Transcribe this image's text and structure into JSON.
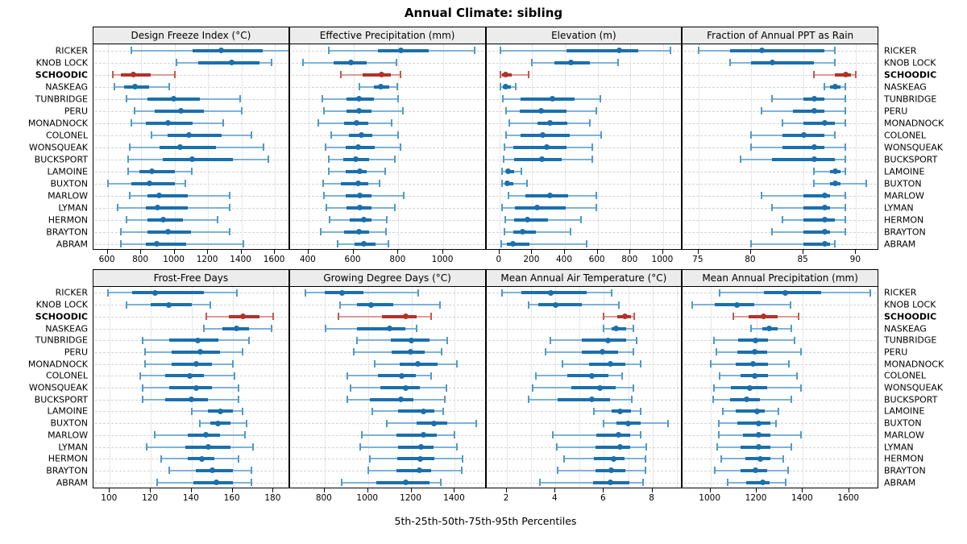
{
  "title": "Annual Climate: sibling",
  "footer": "5th-25th-50th-75th-95th Percentiles",
  "highlight_site": "SCHOODIC",
  "colors": {
    "normal_main": "#1b6fad",
    "normal_light": "#7fb2d8",
    "normal_cap": "#4f9ac9",
    "highlight_main": "#b23229",
    "highlight_light": "#db9d97",
    "highlight_cap": "#c4584e",
    "grid": "#d0d0d0",
    "strip_bg": "#ececec",
    "panel_border": "#000000"
  },
  "sites": [
    "RICKER",
    "KNOB LOCK",
    "SCHOODIC",
    "NASKEAG",
    "TUNBRIDGE",
    "PERU",
    "MONADNOCK",
    "COLONEL",
    "WONSQUEAK",
    "BUCKSPORT",
    "LAMOINE",
    "BUXTON",
    "MARLOW",
    "LYMAN",
    "HERMON",
    "BRAYTON",
    "ABRAM"
  ],
  "chart_data": {
    "type": "dotplot",
    "note": "5 values per site = 5th,25th,50th,75th,95th percentiles",
    "percentiles": [
      5,
      25,
      50,
      75,
      95
    ],
    "layout": {
      "rows": 2,
      "cols": 4,
      "legend": "none",
      "grid": "dotted"
    },
    "panels": [
      {
        "title": "Design Freeze Index (°C)",
        "xlim": [
          515,
          1690
        ],
        "ticks": [
          600,
          800,
          1000,
          1200,
          1400,
          1600
        ],
        "values": [
          [
            740,
            1110,
            1280,
            1530,
            1690
          ],
          [
            1010,
            1140,
            1340,
            1510,
            1580
          ],
          [
            630,
            680,
            755,
            860,
            1000
          ],
          [
            640,
            700,
            765,
            850,
            970
          ],
          [
            710,
            840,
            995,
            1150,
            1390
          ],
          [
            760,
            880,
            1040,
            1175,
            1400
          ],
          [
            740,
            830,
            960,
            1110,
            1290
          ],
          [
            860,
            960,
            1085,
            1280,
            1460
          ],
          [
            730,
            910,
            1035,
            1250,
            1530
          ],
          [
            720,
            930,
            1105,
            1350,
            1560
          ],
          [
            720,
            790,
            865,
            1000,
            1105
          ],
          [
            600,
            740,
            850,
            1000,
            1065
          ],
          [
            730,
            840,
            910,
            1080,
            1330
          ],
          [
            660,
            830,
            900,
            1080,
            1330
          ],
          [
            710,
            840,
            930,
            1050,
            1255
          ],
          [
            680,
            840,
            960,
            1100,
            1330
          ],
          [
            680,
            830,
            895,
            1070,
            1410
          ]
        ]
      },
      {
        "title": "Effective Precipitation (mm)",
        "xlim": [
          317,
          1192
        ],
        "ticks": [
          400,
          600,
          800,
          1000
        ],
        "values": [
          [
            490,
            710,
            810,
            935,
            1140
          ],
          [
            375,
            510,
            590,
            660,
            790
          ],
          [
            545,
            640,
            725,
            765,
            810
          ],
          [
            625,
            690,
            720,
            760,
            795
          ],
          [
            460,
            570,
            625,
            690,
            800
          ],
          [
            470,
            570,
            625,
            680,
            820
          ],
          [
            445,
            560,
            615,
            665,
            770
          ],
          [
            500,
            580,
            635,
            685,
            800
          ],
          [
            475,
            565,
            620,
            695,
            810
          ],
          [
            490,
            555,
            610,
            670,
            785
          ],
          [
            490,
            565,
            630,
            660,
            740
          ],
          [
            465,
            545,
            620,
            665,
            715
          ],
          [
            470,
            565,
            630,
            680,
            825
          ],
          [
            480,
            570,
            630,
            680,
            785
          ],
          [
            495,
            585,
            645,
            680,
            750
          ],
          [
            455,
            560,
            625,
            670,
            745
          ],
          [
            530,
            605,
            645,
            700,
            755
          ]
        ]
      },
      {
        "title": "Elevation (m)",
        "xlim": [
          -80,
          1120
        ],
        "ticks": [
          0,
          200,
          400,
          600,
          800,
          1000
        ],
        "values": [
          [
            5,
            410,
            730,
            850,
            1045
          ],
          [
            200,
            335,
            435,
            555,
            725
          ],
          [
            5,
            15,
            40,
            75,
            180
          ],
          [
            5,
            20,
            40,
            70,
            100
          ],
          [
            20,
            130,
            325,
            460,
            615
          ],
          [
            40,
            125,
            255,
            410,
            590
          ],
          [
            60,
            230,
            310,
            415,
            550
          ],
          [
            40,
            130,
            265,
            430,
            620
          ],
          [
            30,
            85,
            290,
            410,
            565
          ],
          [
            25,
            90,
            260,
            380,
            565
          ],
          [
            15,
            40,
            55,
            90,
            135
          ],
          [
            15,
            35,
            50,
            85,
            170
          ],
          [
            55,
            160,
            310,
            420,
            590
          ],
          [
            15,
            95,
            230,
            405,
            590
          ],
          [
            35,
            90,
            170,
            295,
            500
          ],
          [
            30,
            85,
            140,
            225,
            435
          ],
          [
            10,
            45,
            80,
            185,
            535
          ]
        ]
      },
      {
        "title": "Fraction of Annual PPT as Rain",
        "xlim": [
          73.5,
          92.2
        ],
        "ticks": [
          75,
          80,
          85,
          90
        ],
        "values": [
          [
            75,
            78,
            81,
            87,
            88
          ],
          [
            78,
            80,
            82,
            86,
            88
          ],
          [
            86,
            88,
            89,
            89.5,
            90
          ],
          [
            87,
            87.5,
            88,
            88.5,
            89
          ],
          [
            82,
            85,
            86,
            87,
            89
          ],
          [
            81,
            84,
            86,
            87,
            89
          ],
          [
            83,
            85,
            87,
            88,
            89
          ],
          [
            80,
            83,
            85,
            87,
            88
          ],
          [
            80,
            83,
            86,
            87,
            89
          ],
          [
            79,
            82,
            86,
            88,
            89
          ],
          [
            86,
            87.5,
            88,
            88.5,
            89
          ],
          [
            86,
            87.5,
            88,
            88.5,
            91
          ],
          [
            81,
            85,
            87,
            87.5,
            89
          ],
          [
            82,
            85,
            87,
            87.5,
            89
          ],
          [
            83,
            85,
            87,
            88,
            89
          ],
          [
            82,
            85,
            87,
            87.5,
            89
          ],
          [
            80,
            85,
            87,
            87.5,
            88
          ]
        ]
      },
      {
        "title": "Frost-Free Days",
        "xlim": [
          92,
          188
        ],
        "ticks": [
          100,
          120,
          140,
          160,
          180
        ],
        "values": [
          [
            99,
            111,
            122,
            146,
            162
          ],
          [
            108,
            120,
            129,
            140,
            149
          ],
          [
            147,
            158,
            165,
            173,
            180
          ],
          [
            146,
            155,
            162,
            168,
            179
          ],
          [
            116,
            129,
            143,
            153,
            168
          ],
          [
            117,
            130,
            144,
            154,
            165
          ],
          [
            117,
            130,
            142,
            150,
            160
          ],
          [
            115,
            127,
            139,
            146,
            161
          ],
          [
            116,
            129,
            142,
            150,
            163
          ],
          [
            116,
            127,
            140,
            148,
            163
          ],
          [
            140,
            148,
            154,
            160,
            165
          ],
          [
            144,
            149,
            153,
            159,
            167
          ],
          [
            122,
            138,
            147,
            154,
            166
          ],
          [
            118,
            137,
            148,
            159,
            170
          ],
          [
            125,
            138,
            145,
            151,
            163
          ],
          [
            129,
            142,
            150,
            160,
            169
          ],
          [
            123,
            141,
            152,
            160,
            169
          ]
        ]
      },
      {
        "title": "Growing Degree Days (°C)",
        "xlim": [
          640,
          1545
        ],
        "ticks": [
          800,
          1000,
          1200,
          1400
        ],
        "values": [
          [
            710,
            800,
            880,
            980,
            1230
          ],
          [
            870,
            950,
            1015,
            1115,
            1330
          ],
          [
            865,
            1065,
            1175,
            1225,
            1290
          ],
          [
            805,
            950,
            1100,
            1170,
            1225
          ],
          [
            950,
            1105,
            1200,
            1285,
            1365
          ],
          [
            935,
            1110,
            1195,
            1260,
            1340
          ],
          [
            1030,
            1145,
            1230,
            1320,
            1410
          ],
          [
            905,
            1045,
            1155,
            1220,
            1290
          ],
          [
            920,
            1055,
            1175,
            1240,
            1360
          ],
          [
            905,
            1010,
            1150,
            1210,
            1355
          ],
          [
            1020,
            1140,
            1255,
            1305,
            1345
          ],
          [
            1085,
            1225,
            1305,
            1365,
            1500
          ],
          [
            970,
            1130,
            1255,
            1315,
            1400
          ],
          [
            965,
            1140,
            1245,
            1300,
            1410
          ],
          [
            1010,
            1135,
            1240,
            1305,
            1435
          ],
          [
            1000,
            1130,
            1235,
            1290,
            1430
          ],
          [
            880,
            1040,
            1175,
            1285,
            1335
          ]
        ]
      },
      {
        "title": "Mean Annual Air Temperature (°C)",
        "xlim": [
          1.15,
          9.25
        ],
        "ticks": [
          2,
          4,
          6,
          8
        ],
        "grid_ticks": [
          2,
          3,
          4,
          5,
          6,
          7,
          8,
          9
        ],
        "values": [
          [
            1.8,
            2.6,
            3.8,
            5.3,
            6.3
          ],
          [
            2.9,
            3.3,
            4.0,
            5.1,
            6.6
          ],
          [
            6.0,
            6.55,
            6.85,
            7.1,
            7.25
          ],
          [
            6.0,
            6.3,
            6.5,
            6.9,
            7.2
          ],
          [
            3.8,
            5.1,
            6.15,
            6.9,
            7.35
          ],
          [
            3.6,
            5.1,
            5.95,
            6.6,
            7.2
          ],
          [
            4.3,
            5.4,
            6.25,
            6.9,
            7.5
          ],
          [
            3.2,
            4.5,
            5.5,
            6.2,
            6.75
          ],
          [
            3.05,
            4.65,
            5.85,
            6.5,
            7.2
          ],
          [
            2.9,
            4.1,
            5.5,
            6.25,
            7.15
          ],
          [
            5.6,
            6.3,
            6.65,
            7.1,
            7.5
          ],
          [
            6.0,
            6.5,
            7.0,
            7.5,
            8.65
          ],
          [
            3.9,
            5.7,
            6.6,
            7.1,
            7.5
          ],
          [
            4.05,
            5.65,
            6.65,
            7.1,
            7.75
          ],
          [
            4.35,
            5.6,
            6.4,
            6.85,
            7.7
          ],
          [
            4.1,
            5.65,
            6.3,
            6.9,
            7.7
          ],
          [
            3.35,
            5.55,
            6.25,
            7.05,
            7.6
          ]
        ]
      },
      {
        "title": "Mean Annual Precipitation (mm)",
        "xlim": [
          880,
          1730
        ],
        "ticks": [
          1000,
          1200,
          1400,
          1600
        ],
        "values": [
          [
            1040,
            1230,
            1325,
            1480,
            1690
          ],
          [
            920,
            1020,
            1115,
            1190,
            1345
          ],
          [
            1100,
            1165,
            1230,
            1290,
            1380
          ],
          [
            1175,
            1225,
            1255,
            1290,
            1350
          ],
          [
            1015,
            1120,
            1195,
            1250,
            1365
          ],
          [
            1025,
            1115,
            1190,
            1245,
            1390
          ],
          [
            1000,
            1110,
            1185,
            1250,
            1340
          ],
          [
            1040,
            1130,
            1190,
            1250,
            1375
          ],
          [
            1015,
            1090,
            1170,
            1245,
            1390
          ],
          [
            1010,
            1085,
            1155,
            1215,
            1350
          ],
          [
            1055,
            1110,
            1200,
            1235,
            1295
          ],
          [
            1035,
            1115,
            1210,
            1260,
            1285
          ],
          [
            1035,
            1140,
            1210,
            1260,
            1390
          ],
          [
            1030,
            1130,
            1210,
            1260,
            1350
          ],
          [
            1045,
            1150,
            1215,
            1260,
            1315
          ],
          [
            1020,
            1130,
            1195,
            1245,
            1335
          ],
          [
            1075,
            1155,
            1225,
            1255,
            1325
          ]
        ]
      }
    ]
  }
}
